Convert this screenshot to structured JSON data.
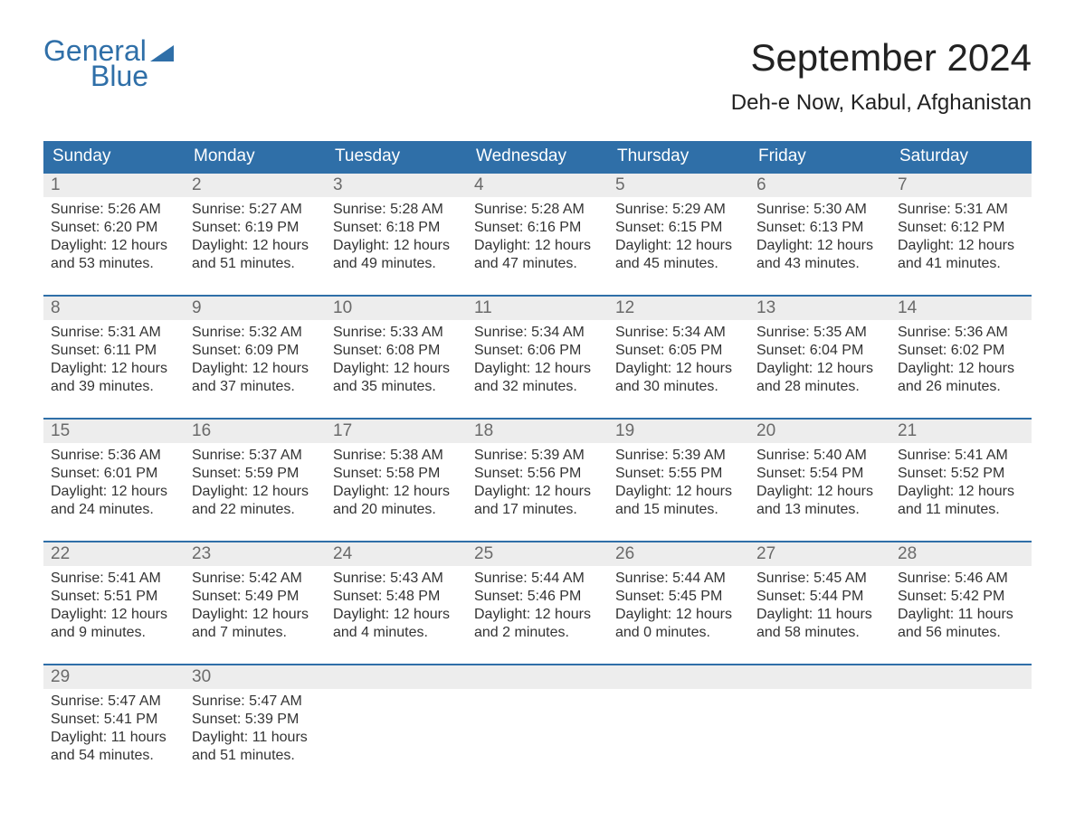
{
  "brand": {
    "line1": "General",
    "line2": "Blue",
    "color": "#2f6fa8"
  },
  "title": "September 2024",
  "location": "Deh-e Now, Kabul, Afghanistan",
  "colors": {
    "header_bg": "#2f6fa8",
    "header_text": "#ffffff",
    "daynum_bg": "#ededed",
    "daynum_text": "#6a6a6a",
    "body_text": "#333333",
    "page_bg": "#ffffff"
  },
  "typography": {
    "title_fontsize": 42,
    "location_fontsize": 24,
    "header_fontsize": 19,
    "daynum_fontsize": 19,
    "cell_fontsize": 16
  },
  "day_headers": [
    "Sunday",
    "Monday",
    "Tuesday",
    "Wednesday",
    "Thursday",
    "Friday",
    "Saturday"
  ],
  "weeks": [
    [
      {
        "n": "1",
        "sr": "Sunrise: 5:26 AM",
        "ss": "Sunset: 6:20 PM",
        "d1": "Daylight: 12 hours",
        "d2": "and 53 minutes."
      },
      {
        "n": "2",
        "sr": "Sunrise: 5:27 AM",
        "ss": "Sunset: 6:19 PM",
        "d1": "Daylight: 12 hours",
        "d2": "and 51 minutes."
      },
      {
        "n": "3",
        "sr": "Sunrise: 5:28 AM",
        "ss": "Sunset: 6:18 PM",
        "d1": "Daylight: 12 hours",
        "d2": "and 49 minutes."
      },
      {
        "n": "4",
        "sr": "Sunrise: 5:28 AM",
        "ss": "Sunset: 6:16 PM",
        "d1": "Daylight: 12 hours",
        "d2": "and 47 minutes."
      },
      {
        "n": "5",
        "sr": "Sunrise: 5:29 AM",
        "ss": "Sunset: 6:15 PM",
        "d1": "Daylight: 12 hours",
        "d2": "and 45 minutes."
      },
      {
        "n": "6",
        "sr": "Sunrise: 5:30 AM",
        "ss": "Sunset: 6:13 PM",
        "d1": "Daylight: 12 hours",
        "d2": "and 43 minutes."
      },
      {
        "n": "7",
        "sr": "Sunrise: 5:31 AM",
        "ss": "Sunset: 6:12 PM",
        "d1": "Daylight: 12 hours",
        "d2": "and 41 minutes."
      }
    ],
    [
      {
        "n": "8",
        "sr": "Sunrise: 5:31 AM",
        "ss": "Sunset: 6:11 PM",
        "d1": "Daylight: 12 hours",
        "d2": "and 39 minutes."
      },
      {
        "n": "9",
        "sr": "Sunrise: 5:32 AM",
        "ss": "Sunset: 6:09 PM",
        "d1": "Daylight: 12 hours",
        "d2": "and 37 minutes."
      },
      {
        "n": "10",
        "sr": "Sunrise: 5:33 AM",
        "ss": "Sunset: 6:08 PM",
        "d1": "Daylight: 12 hours",
        "d2": "and 35 minutes."
      },
      {
        "n": "11",
        "sr": "Sunrise: 5:34 AM",
        "ss": "Sunset: 6:06 PM",
        "d1": "Daylight: 12 hours",
        "d2": "and 32 minutes."
      },
      {
        "n": "12",
        "sr": "Sunrise: 5:34 AM",
        "ss": "Sunset: 6:05 PM",
        "d1": "Daylight: 12 hours",
        "d2": "and 30 minutes."
      },
      {
        "n": "13",
        "sr": "Sunrise: 5:35 AM",
        "ss": "Sunset: 6:04 PM",
        "d1": "Daylight: 12 hours",
        "d2": "and 28 minutes."
      },
      {
        "n": "14",
        "sr": "Sunrise: 5:36 AM",
        "ss": "Sunset: 6:02 PM",
        "d1": "Daylight: 12 hours",
        "d2": "and 26 minutes."
      }
    ],
    [
      {
        "n": "15",
        "sr": "Sunrise: 5:36 AM",
        "ss": "Sunset: 6:01 PM",
        "d1": "Daylight: 12 hours",
        "d2": "and 24 minutes."
      },
      {
        "n": "16",
        "sr": "Sunrise: 5:37 AM",
        "ss": "Sunset: 5:59 PM",
        "d1": "Daylight: 12 hours",
        "d2": "and 22 minutes."
      },
      {
        "n": "17",
        "sr": "Sunrise: 5:38 AM",
        "ss": "Sunset: 5:58 PM",
        "d1": "Daylight: 12 hours",
        "d2": "and 20 minutes."
      },
      {
        "n": "18",
        "sr": "Sunrise: 5:39 AM",
        "ss": "Sunset: 5:56 PM",
        "d1": "Daylight: 12 hours",
        "d2": "and 17 minutes."
      },
      {
        "n": "19",
        "sr": "Sunrise: 5:39 AM",
        "ss": "Sunset: 5:55 PM",
        "d1": "Daylight: 12 hours",
        "d2": "and 15 minutes."
      },
      {
        "n": "20",
        "sr": "Sunrise: 5:40 AM",
        "ss": "Sunset: 5:54 PM",
        "d1": "Daylight: 12 hours",
        "d2": "and 13 minutes."
      },
      {
        "n": "21",
        "sr": "Sunrise: 5:41 AM",
        "ss": "Sunset: 5:52 PM",
        "d1": "Daylight: 12 hours",
        "d2": "and 11 minutes."
      }
    ],
    [
      {
        "n": "22",
        "sr": "Sunrise: 5:41 AM",
        "ss": "Sunset: 5:51 PM",
        "d1": "Daylight: 12 hours",
        "d2": "and 9 minutes."
      },
      {
        "n": "23",
        "sr": "Sunrise: 5:42 AM",
        "ss": "Sunset: 5:49 PM",
        "d1": "Daylight: 12 hours",
        "d2": "and 7 minutes."
      },
      {
        "n": "24",
        "sr": "Sunrise: 5:43 AM",
        "ss": "Sunset: 5:48 PM",
        "d1": "Daylight: 12 hours",
        "d2": "and 4 minutes."
      },
      {
        "n": "25",
        "sr": "Sunrise: 5:44 AM",
        "ss": "Sunset: 5:46 PM",
        "d1": "Daylight: 12 hours",
        "d2": "and 2 minutes."
      },
      {
        "n": "26",
        "sr": "Sunrise: 5:44 AM",
        "ss": "Sunset: 5:45 PM",
        "d1": "Daylight: 12 hours",
        "d2": "and 0 minutes."
      },
      {
        "n": "27",
        "sr": "Sunrise: 5:45 AM",
        "ss": "Sunset: 5:44 PM",
        "d1": "Daylight: 11 hours",
        "d2": "and 58 minutes."
      },
      {
        "n": "28",
        "sr": "Sunrise: 5:46 AM",
        "ss": "Sunset: 5:42 PM",
        "d1": "Daylight: 11 hours",
        "d2": "and 56 minutes."
      }
    ],
    [
      {
        "n": "29",
        "sr": "Sunrise: 5:47 AM",
        "ss": "Sunset: 5:41 PM",
        "d1": "Daylight: 11 hours",
        "d2": "and 54 minutes."
      },
      {
        "n": "30",
        "sr": "Sunrise: 5:47 AM",
        "ss": "Sunset: 5:39 PM",
        "d1": "Daylight: 11 hours",
        "d2": "and 51 minutes."
      },
      {
        "n": "",
        "sr": "",
        "ss": "",
        "d1": "",
        "d2": ""
      },
      {
        "n": "",
        "sr": "",
        "ss": "",
        "d1": "",
        "d2": ""
      },
      {
        "n": "",
        "sr": "",
        "ss": "",
        "d1": "",
        "d2": ""
      },
      {
        "n": "",
        "sr": "",
        "ss": "",
        "d1": "",
        "d2": ""
      },
      {
        "n": "",
        "sr": "",
        "ss": "",
        "d1": "",
        "d2": ""
      }
    ]
  ]
}
